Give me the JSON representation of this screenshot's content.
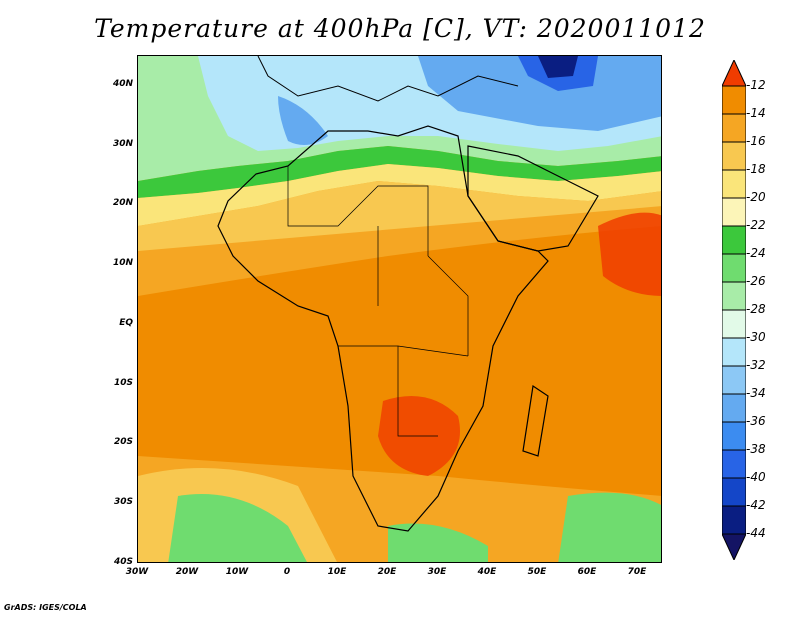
{
  "title": "Temperature at 400hPa [C], VT: 2020011012",
  "credit": "GrADS: IGES/COLA",
  "map": {
    "lon_range": [
      -30,
      75
    ],
    "lat_range": [
      -40,
      45
    ],
    "lat_labels": [
      {
        "lat": 40,
        "text": "40N"
      },
      {
        "lat": 30,
        "text": "30N"
      },
      {
        "lat": 20,
        "text": "20N"
      },
      {
        "lat": 10,
        "text": "10N"
      },
      {
        "lat": 0,
        "text": "EQ"
      },
      {
        "lat": -10,
        "text": "10S"
      },
      {
        "lat": -20,
        "text": "20S"
      },
      {
        "lat": -30,
        "text": "30S"
      },
      {
        "lat": -40,
        "text": "40S"
      }
    ],
    "lon_labels": [
      {
        "lon": -30,
        "text": "30W"
      },
      {
        "lon": -20,
        "text": "20W"
      },
      {
        "lon": -10,
        "text": "10W"
      },
      {
        "lon": 0,
        "text": "0"
      },
      {
        "lon": 10,
        "text": "10E"
      },
      {
        "lon": 20,
        "text": "20E"
      },
      {
        "lon": 30,
        "text": "30E"
      },
      {
        "lon": 40,
        "text": "40E"
      },
      {
        "lon": 50,
        "text": "50E"
      },
      {
        "lon": 60,
        "text": "60E"
      },
      {
        "lon": 70,
        "text": "70E"
      }
    ]
  },
  "colorbar": {
    "levels": [
      "-12",
      "-14",
      "-16",
      "-18",
      "-20",
      "-22",
      "-24",
      "-26",
      "-28",
      "-30",
      "-32",
      "-34",
      "-36",
      "-38",
      "-40",
      "-42",
      "-44"
    ],
    "colors": [
      "#f03c00",
      "#f08c00",
      "#f5a623",
      "#f8c850",
      "#fae57a",
      "#fcf5b8",
      "#3cc83c",
      "#6fdc6f",
      "#a8eca8",
      "#e2fae8",
      "#b4e6fa",
      "#8cc8f5",
      "#64aaf0",
      "#3c8cf0",
      "#2864e6",
      "#1446c8",
      "#0a1e82",
      "#141464"
    ]
  }
}
